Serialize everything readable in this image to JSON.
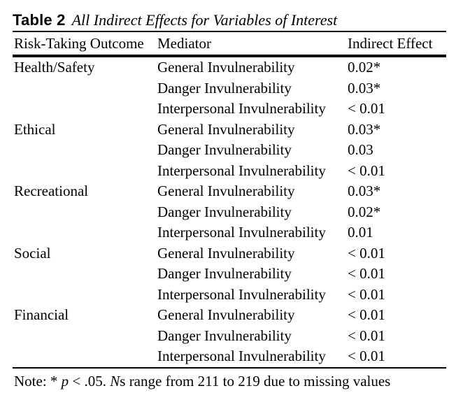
{
  "table": {
    "label": "Table 2",
    "title": "All Indirect Effects for Variables of Interest",
    "columns": {
      "outcome": "Risk-Taking Outcome",
      "mediator": "Mediator",
      "effect": "Indirect Effect"
    },
    "rows": [
      {
        "outcome": "Health/Safety",
        "mediator": "General Invulnerability",
        "effect": "0.02*"
      },
      {
        "outcome": "",
        "mediator": "Danger Invulnerability",
        "effect": "0.03*"
      },
      {
        "outcome": "",
        "mediator": "Interpersonal Invulnerability",
        "effect": "< 0.01"
      },
      {
        "outcome": "Ethical",
        "mediator": "General Invulnerability",
        "effect": "0.03*"
      },
      {
        "outcome": "",
        "mediator": "Danger Invulnerability",
        "effect": "0.03"
      },
      {
        "outcome": "",
        "mediator": "Interpersonal Invulnerability",
        "effect": "< 0.01"
      },
      {
        "outcome": "Recreational",
        "mediator": "General Invulnerability",
        "effect": "0.03*"
      },
      {
        "outcome": "",
        "mediator": "Danger Invulnerability",
        "effect": "0.02*"
      },
      {
        "outcome": "",
        "mediator": "Interpersonal Invulnerability",
        "effect": "0.01"
      },
      {
        "outcome": "Social",
        "mediator": "General Invulnerability",
        "effect": "< 0.01"
      },
      {
        "outcome": "",
        "mediator": "Danger Invulnerability",
        "effect": "< 0.01"
      },
      {
        "outcome": "",
        "mediator": "Interpersonal Invulnerability",
        "effect": "< 0.01"
      },
      {
        "outcome": "Financial",
        "mediator": "General Invulnerability",
        "effect": "< 0.01"
      },
      {
        "outcome": "",
        "mediator": "Danger Invulnerability",
        "effect": "< 0.01"
      },
      {
        "outcome": "",
        "mediator": "Interpersonal Invulnerability",
        "effect": "< 0.01"
      }
    ],
    "note": {
      "part1": "Note: * ",
      "p": "p",
      "part2": " < .05. ",
      "n": "N",
      "part3": "s range from 211 to 219 due to missing values"
    },
    "colors": {
      "text": "#000000",
      "background": "#ffffff",
      "rule": "#000000"
    }
  }
}
